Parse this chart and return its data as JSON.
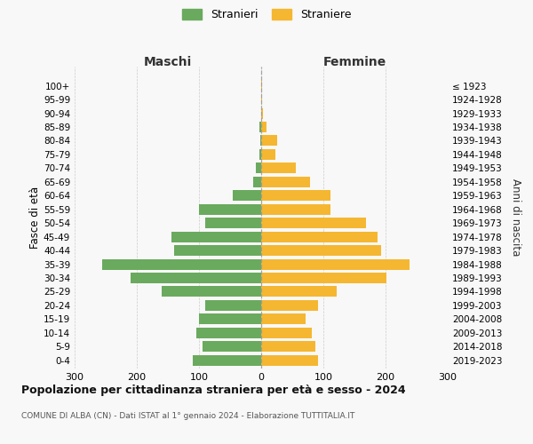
{
  "age_groups": [
    "0-4",
    "5-9",
    "10-14",
    "15-19",
    "20-24",
    "25-29",
    "30-34",
    "35-39",
    "40-44",
    "45-49",
    "50-54",
    "55-59",
    "60-64",
    "65-69",
    "70-74",
    "75-79",
    "80-84",
    "85-89",
    "90-94",
    "95-99",
    "100+"
  ],
  "birth_years": [
    "2019-2023",
    "2014-2018",
    "2009-2013",
    "2004-2008",
    "1999-2003",
    "1994-1998",
    "1989-1993",
    "1984-1988",
    "1979-1983",
    "1974-1978",
    "1969-1973",
    "1964-1968",
    "1959-1963",
    "1954-1958",
    "1949-1953",
    "1944-1948",
    "1939-1943",
    "1934-1938",
    "1929-1933",
    "1924-1928",
    "≤ 1923"
  ],
  "maschi": [
    110,
    95,
    105,
    100,
    90,
    160,
    210,
    255,
    140,
    145,
    90,
    100,
    46,
    13,
    8,
    3,
    2,
    3,
    0,
    0,
    0
  ],
  "femmine": [
    91,
    87,
    82,
    71,
    91,
    122,
    202,
    238,
    193,
    187,
    168,
    112,
    112,
    78,
    55,
    23,
    26,
    9,
    3,
    1,
    1
  ],
  "color_maschi": "#6aaa5e",
  "color_femmine": "#f5b731",
  "dashed_color": "#999999",
  "title": "Popolazione per cittadinanza straniera per età e sesso - 2024",
  "subtitle": "COMUNE DI ALBA (CN) - Dati ISTAT al 1° gennaio 2024 - Elaborazione TUTTITALIA.IT",
  "ylabel_left": "Fasce di età",
  "ylabel_right": "Anni di nascita",
  "label_maschi": "Maschi",
  "label_femmine": "Femmine",
  "legend_maschi": "Stranieri",
  "legend_femmine": "Straniere",
  "xlim": 300,
  "bg_color": "#f8f8f8",
  "grid_color": "#cccccc",
  "bar_height": 0.78
}
